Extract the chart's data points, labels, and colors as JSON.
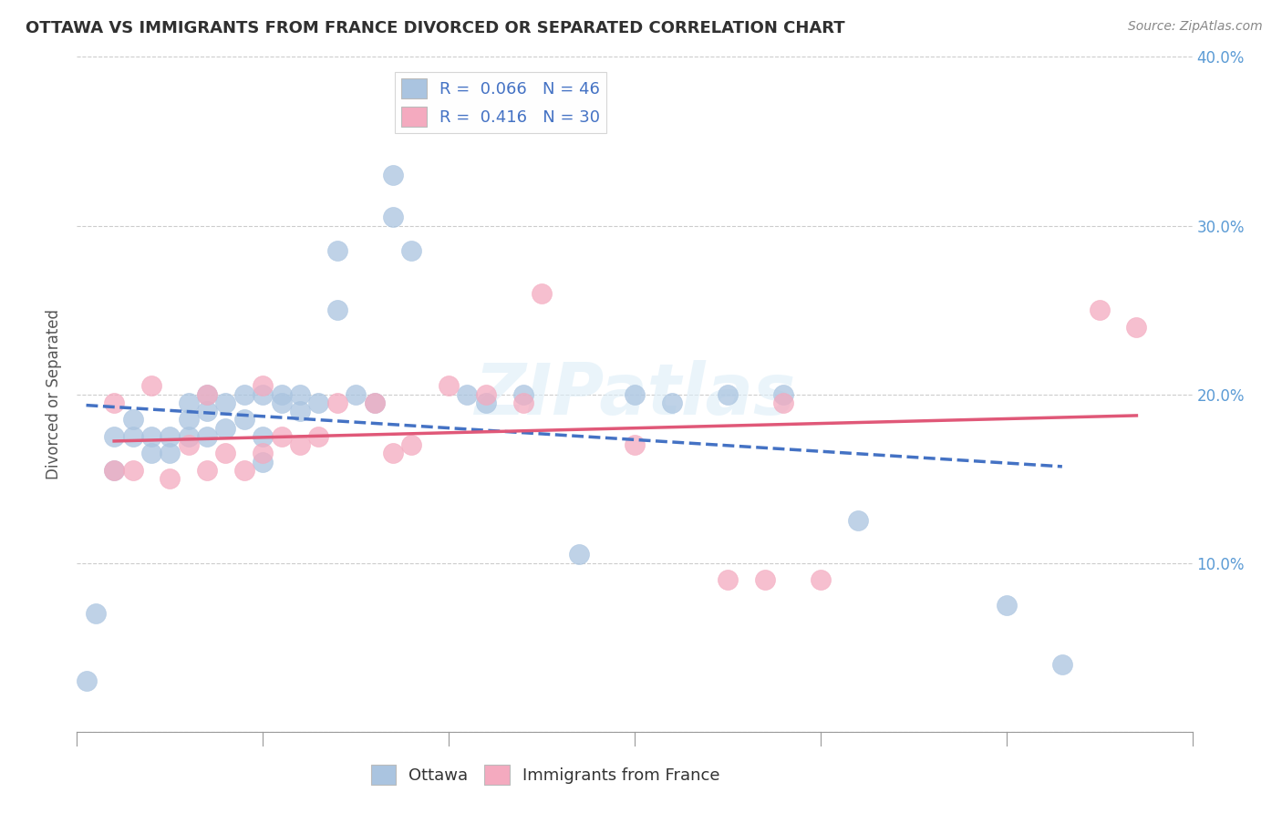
{
  "title": "OTTAWA VS IMMIGRANTS FROM FRANCE DIVORCED OR SEPARATED CORRELATION CHART",
  "source": "Source: ZipAtlas.com",
  "ylabel": "Divorced or Separated",
  "ottawa_R": 0.066,
  "ottawa_N": 46,
  "france_R": 0.416,
  "france_N": 30,
  "ottawa_color": "#aac4e0",
  "france_color": "#f4aabf",
  "ottawa_line_color": "#4472c4",
  "france_line_color": "#e05878",
  "watermark_color": "#d8e8f0",
  "background_color": "#ffffff",
  "grid_color": "#cccccc",
  "xlim": [
    0.0,
    0.6
  ],
  "ylim": [
    0.0,
    0.4
  ],
  "ottawa_x": [
    0.005,
    0.01,
    0.02,
    0.02,
    0.03,
    0.03,
    0.04,
    0.04,
    0.05,
    0.05,
    0.06,
    0.06,
    0.06,
    0.07,
    0.07,
    0.07,
    0.08,
    0.08,
    0.09,
    0.09,
    0.1,
    0.1,
    0.1,
    0.11,
    0.11,
    0.12,
    0.12,
    0.13,
    0.14,
    0.14,
    0.15,
    0.16,
    0.17,
    0.17,
    0.18,
    0.21,
    0.22,
    0.24,
    0.27,
    0.3,
    0.32,
    0.35,
    0.38,
    0.42,
    0.5,
    0.53
  ],
  "ottawa_y": [
    0.03,
    0.07,
    0.155,
    0.175,
    0.175,
    0.185,
    0.175,
    0.165,
    0.175,
    0.165,
    0.195,
    0.185,
    0.175,
    0.2,
    0.19,
    0.175,
    0.195,
    0.18,
    0.2,
    0.185,
    0.2,
    0.175,
    0.16,
    0.2,
    0.195,
    0.2,
    0.19,
    0.195,
    0.25,
    0.285,
    0.2,
    0.195,
    0.33,
    0.305,
    0.285,
    0.2,
    0.195,
    0.2,
    0.105,
    0.2,
    0.195,
    0.2,
    0.2,
    0.125,
    0.075,
    0.04
  ],
  "france_x": [
    0.02,
    0.02,
    0.03,
    0.04,
    0.05,
    0.06,
    0.07,
    0.07,
    0.08,
    0.09,
    0.1,
    0.1,
    0.11,
    0.12,
    0.13,
    0.14,
    0.16,
    0.17,
    0.18,
    0.2,
    0.22,
    0.24,
    0.25,
    0.3,
    0.35,
    0.37,
    0.38,
    0.4,
    0.55,
    0.57
  ],
  "france_y": [
    0.155,
    0.195,
    0.155,
    0.205,
    0.15,
    0.17,
    0.155,
    0.2,
    0.165,
    0.155,
    0.165,
    0.205,
    0.175,
    0.17,
    0.175,
    0.195,
    0.195,
    0.165,
    0.17,
    0.205,
    0.2,
    0.195,
    0.26,
    0.17,
    0.09,
    0.09,
    0.195,
    0.09,
    0.25,
    0.24
  ]
}
